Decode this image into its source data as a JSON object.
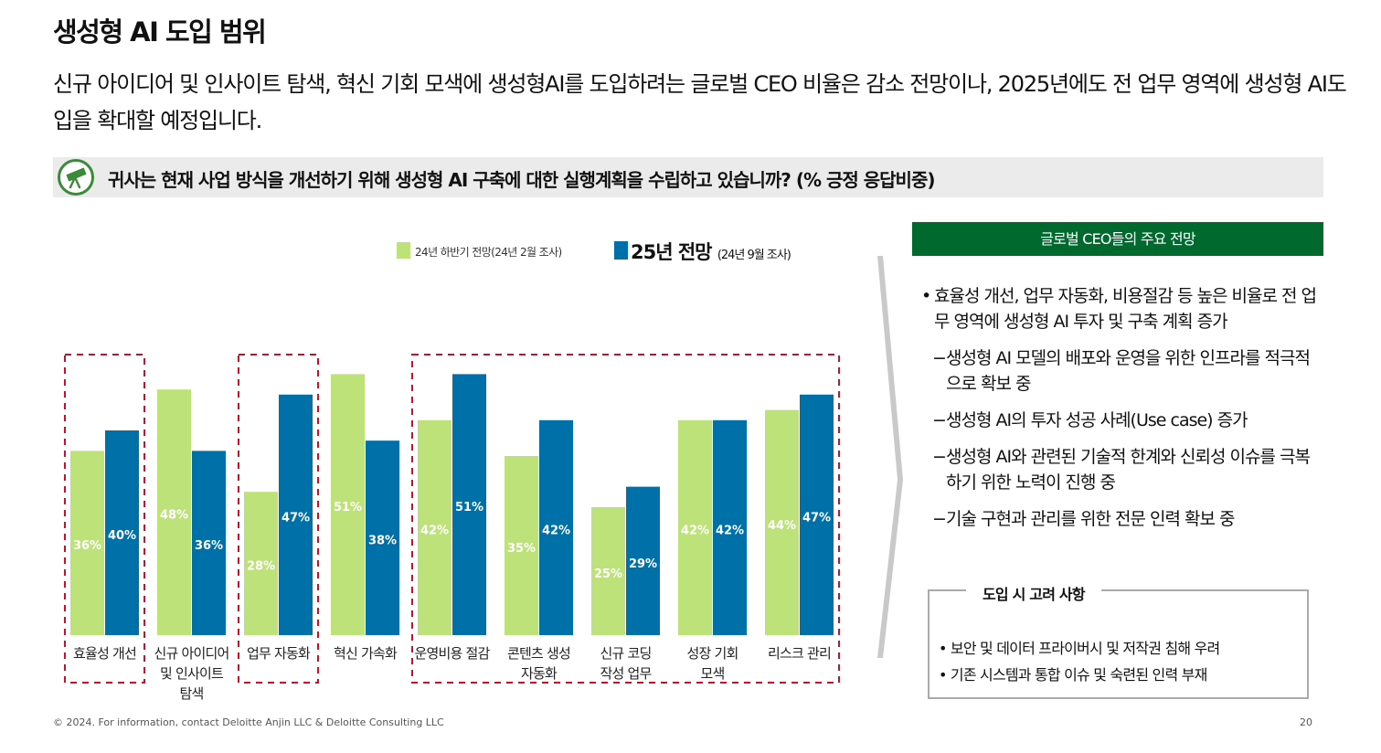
{
  "title": "생성형 AI 도입 범위",
  "subtitle": "신규 아이디어 및 인사이트 탐색, 혁신 기회 모색에 생성형AI를 도입하려는 글로벌 CEO 비율은 감소 전망이나, 2025년에도 전 업무 영역에 생성형 AI도입을 확대할 예정입니다.",
  "question": "귀사는 현재 사업 방식을 개선하기 위해 생성형 AI 구축에 대한 실행계획을 수립하고 있습니까?  (% 긍정 응답비중)",
  "colors": {
    "green": "#bde27a",
    "blue": "#0070a8",
    "dark_green": "#006a2e",
    "highlight": "#c8102e"
  },
  "chart_data": {
    "type": "bar",
    "categories": [
      "효율성 개선",
      "신규 아이디어\n및 인사이트\n탐색",
      "업무 자동화",
      "혁신 가속화",
      "운영비용 절감",
      "콘텐츠 생성\n자동화",
      "신규 코딩\n작성 업무",
      "성장 기회\n모색",
      "리스크 관리"
    ],
    "series": [
      {
        "name": "24년 하반기 전망",
        "note": "(24년 2월 조사)",
        "color": "#bde27a",
        "values": [
          36,
          48,
          28,
          51,
          42,
          35,
          25,
          42,
          44
        ]
      },
      {
        "name": "25년 전망",
        "note": "(24년 9월 조사)",
        "color": "#0070a8",
        "values": [
          40,
          36,
          47,
          38,
          51,
          42,
          29,
          42,
          47
        ]
      }
    ],
    "value_suffix": "%",
    "ylim": [
      0,
      55
    ],
    "highlighted_groups": [
      [
        0
      ],
      [
        2
      ],
      [
        4,
        5,
        6,
        7,
        8
      ]
    ]
  },
  "panel": {
    "header": "글로벌 CEO들의 주요 전망",
    "bullet_mark": "•",
    "main_bullet": "효율성 개선, 업무 자동화, 비용절감 등 높은 비율로 전 업무 영역에  생성형 AI 투자 및 구축 계획 증가",
    "dash_mark": "−",
    "sub_items": [
      "생성형 AI 모델의 배포와 운영을 위한 인프라를 적극적으로 확보 중",
      "생성형 AI의 투자 성공 사례(Use case) 증가",
      "생성형 AI와 관련된 기술적 한계와 신뢰성 이슈를 극복하기 위한 노력이 진행 중",
      "기술 구현과 관리를 위한 전문 인력  확보 중"
    ]
  },
  "consider": {
    "title": "도입 시 고려 사항",
    "items": [
      "• 보안 및 데이터 프라이버시 및 저작권 침해 우려",
      "• 기존 시스템과 통합 이슈 및 숙련된 인력 부재"
    ]
  },
  "footer": "© 2024. For information, contact Deloitte Anjin LLC & Deloitte Consulting LLC",
  "page_number": "20",
  "icons": {
    "question": "telescope-icon",
    "panel_arrow": "chevron-right-icon"
  }
}
